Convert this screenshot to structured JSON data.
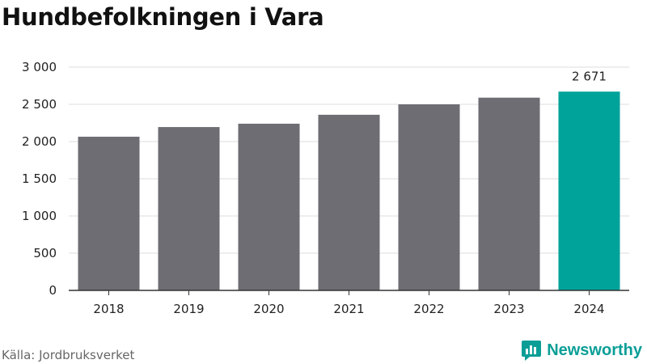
{
  "header": {
    "title": "Hundbefolkningen i Vara"
  },
  "footer": {
    "source": "Källa: Jordbruksverket",
    "brand": "Newsworthy"
  },
  "colors": {
    "bar": "#6e6d73",
    "highlight": "#00a39a",
    "grid": "#dddddd",
    "axis": "#333333"
  },
  "chart_data": {
    "type": "bar",
    "title": "Hundbefolkningen i Vara",
    "xlabel": "",
    "ylabel": "",
    "categories": [
      "2018",
      "2019",
      "2020",
      "2021",
      "2022",
      "2023",
      "2024"
    ],
    "values": [
      2065,
      2195,
      2240,
      2360,
      2500,
      2590,
      2671
    ],
    "highlight_index": 6,
    "data_labels": [
      {
        "index": 6,
        "text": "2 671"
      }
    ],
    "ylim": [
      0,
      3000
    ],
    "yticks": [
      0,
      500,
      1000,
      1500,
      2000,
      2500,
      3000
    ],
    "ytick_labels": [
      "0",
      "500",
      "1 000",
      "1 500",
      "2 000",
      "2 500",
      "3 000"
    ],
    "grid": true,
    "legend": "none"
  }
}
